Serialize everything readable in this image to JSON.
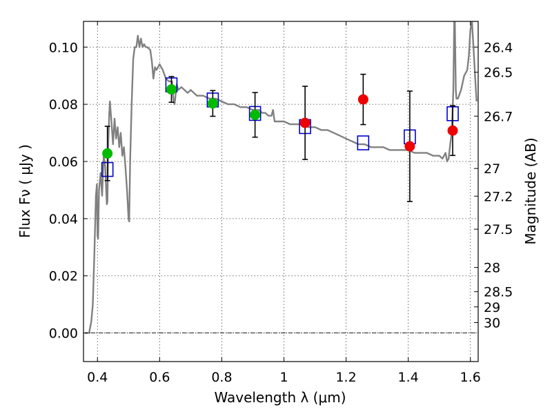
{
  "chart_data": {
    "type": "scatter",
    "title": "",
    "xlabel": "Wavelength  λ (μm)",
    "ylabel": "Flux  Fν  ( μJy )",
    "y2label": "Magnitude (AB)",
    "xlim": [
      0.355,
      1.625
    ],
    "ylim": [
      -0.01,
      0.109
    ],
    "grid": true,
    "x_ticks": [
      0.4,
      0.6,
      0.8,
      1.0,
      1.2,
      1.4,
      1.6
    ],
    "x_tick_labels": [
      "0.4",
      "0.6",
      "0.8",
      "1",
      "1.2",
      "1.4",
      "1.6"
    ],
    "y_ticks": [
      0.0,
      0.02,
      0.04,
      0.06,
      0.08,
      0.1
    ],
    "y_tick_labels": [
      "0.00",
      "0.02",
      "0.04",
      "0.06",
      "0.08",
      "0.10"
    ],
    "mag_ticks": [
      26.4,
      26.5,
      26.7,
      27,
      27.2,
      27.5,
      28,
      28.5,
      29,
      30
    ],
    "mag_tick_labels": [
      "26.4",
      "26.5",
      "26.7",
      "27",
      "27.2",
      "27.5",
      "28",
      "28.5",
      "29",
      "30"
    ],
    "colors": {
      "model": "#808080",
      "optical": "#00bb00",
      "nir": "#ee0000",
      "model_phot": "#0000cc",
      "errorbar": "#000000"
    },
    "series": [
      {
        "style": "line",
        "color": "#808080",
        "points": [
          [
            0.36,
            0.0
          ],
          [
            0.373,
            0.0
          ],
          [
            0.38,
            0.004
          ],
          [
            0.385,
            0.01
          ],
          [
            0.39,
            0.028
          ],
          [
            0.395,
            0.048
          ],
          [
            0.398,
            0.052
          ],
          [
            0.4,
            0.034
          ],
          [
            0.402,
            0.033
          ],
          [
            0.405,
            0.05
          ],
          [
            0.41,
            0.056
          ],
          [
            0.415,
            0.048
          ],
          [
            0.42,
            0.062
          ],
          [
            0.425,
            0.058
          ],
          [
            0.43,
            0.045
          ],
          [
            0.432,
            0.046
          ],
          [
            0.435,
            0.067
          ],
          [
            0.438,
            0.077
          ],
          [
            0.44,
            0.081
          ],
          [
            0.445,
            0.074
          ],
          [
            0.45,
            0.066
          ],
          [
            0.455,
            0.075
          ],
          [
            0.46,
            0.068
          ],
          [
            0.465,
            0.072
          ],
          [
            0.47,
            0.065
          ],
          [
            0.475,
            0.07
          ],
          [
            0.48,
            0.062
          ],
          [
            0.485,
            0.065
          ],
          [
            0.49,
            0.058
          ],
          [
            0.495,
            0.05
          ],
          [
            0.5,
            0.04
          ],
          [
            0.502,
            0.039
          ],
          [
            0.505,
            0.06
          ],
          [
            0.51,
            0.08
          ],
          [
            0.515,
            0.096
          ],
          [
            0.52,
            0.1
          ],
          [
            0.525,
            0.1
          ],
          [
            0.53,
            0.104
          ],
          [
            0.535,
            0.1
          ],
          [
            0.54,
            0.103
          ],
          [
            0.545,
            0.1
          ],
          [
            0.55,
            0.101
          ],
          [
            0.555,
            0.1
          ],
          [
            0.56,
            0.1
          ],
          [
            0.57,
            0.099
          ],
          [
            0.575,
            0.095
          ],
          [
            0.58,
            0.089
          ],
          [
            0.585,
            0.093
          ],
          [
            0.59,
            0.092
          ],
          [
            0.6,
            0.094
          ],
          [
            0.61,
            0.092
          ],
          [
            0.62,
            0.089
          ],
          [
            0.63,
            0.088
          ],
          [
            0.64,
            0.088
          ],
          [
            0.645,
            0.081
          ],
          [
            0.648,
            0.08
          ],
          [
            0.655,
            0.087
          ],
          [
            0.66,
            0.085
          ],
          [
            0.67,
            0.086
          ],
          [
            0.68,
            0.085
          ],
          [
            0.69,
            0.084
          ],
          [
            0.7,
            0.085
          ],
          [
            0.72,
            0.083
          ],
          [
            0.74,
            0.083
          ],
          [
            0.76,
            0.082
          ],
          [
            0.78,
            0.082
          ],
          [
            0.8,
            0.081
          ],
          [
            0.82,
            0.08
          ],
          [
            0.84,
            0.08
          ],
          [
            0.86,
            0.079
          ],
          [
            0.88,
            0.079
          ],
          [
            0.9,
            0.078
          ],
          [
            0.92,
            0.078
          ],
          [
            0.93,
            0.077
          ],
          [
            0.94,
            0.077
          ],
          [
            0.95,
            0.076
          ],
          [
            0.96,
            0.076
          ],
          [
            0.965,
            0.078
          ],
          [
            0.97,
            0.074
          ],
          [
            0.98,
            0.074
          ],
          [
            1.0,
            0.074
          ],
          [
            1.02,
            0.073
          ],
          [
            1.04,
            0.073
          ],
          [
            1.06,
            0.073
          ],
          [
            1.08,
            0.072
          ],
          [
            1.1,
            0.072
          ],
          [
            1.12,
            0.071
          ],
          [
            1.14,
            0.071
          ],
          [
            1.16,
            0.07
          ],
          [
            1.18,
            0.069
          ],
          [
            1.2,
            0.068
          ],
          [
            1.22,
            0.067
          ],
          [
            1.24,
            0.066
          ],
          [
            1.26,
            0.066
          ],
          [
            1.28,
            0.065
          ],
          [
            1.3,
            0.065
          ],
          [
            1.32,
            0.065
          ],
          [
            1.34,
            0.064
          ],
          [
            1.36,
            0.064
          ],
          [
            1.38,
            0.064
          ],
          [
            1.4,
            0.064
          ],
          [
            1.42,
            0.063
          ],
          [
            1.44,
            0.063
          ],
          [
            1.46,
            0.063
          ],
          [
            1.48,
            0.062
          ],
          [
            1.5,
            0.062
          ],
          [
            1.51,
            0.061
          ],
          [
            1.52,
            0.063
          ],
          [
            1.525,
            0.06
          ],
          [
            1.53,
            0.061
          ],
          [
            1.535,
            0.066
          ],
          [
            1.54,
            0.07
          ],
          [
            1.545,
            0.085
          ],
          [
            1.548,
            0.109
          ],
          [
            1.55,
            0.109
          ],
          [
            1.553,
            0.085
          ],
          [
            1.555,
            0.082
          ],
          [
            1.56,
            0.082
          ],
          [
            1.57,
            0.085
          ],
          [
            1.58,
            0.09
          ],
          [
            1.59,
            0.092
          ],
          [
            1.595,
            0.097
          ],
          [
            1.6,
            0.106
          ],
          [
            1.605,
            0.109
          ],
          [
            1.61,
            0.1
          ],
          [
            1.615,
            0.09
          ],
          [
            1.62,
            0.081
          ]
        ]
      },
      {
        "style": "square",
        "color": "#0000cc",
        "points": [
          [
            0.432,
            0.0572
          ],
          [
            0.638,
            0.0868
          ],
          [
            0.771,
            0.0815
          ],
          [
            0.907,
            0.0768
          ],
          [
            1.068,
            0.0722
          ],
          [
            1.255,
            0.0665
          ],
          [
            1.405,
            0.0686
          ],
          [
            1.543,
            0.0767
          ]
        ]
      },
      {
        "style": "circle",
        "color": "#00bb00",
        "points": [
          {
            "x": 0.432,
            "y": 0.0628,
            "err": 0.0095
          },
          {
            "x": 0.638,
            "y": 0.0852,
            "err": 0.0045
          },
          {
            "x": 0.771,
            "y": 0.0803,
            "err": 0.0045
          },
          {
            "x": 0.907,
            "y": 0.0763,
            "err": 0.0078
          }
        ]
      },
      {
        "style": "circle",
        "color": "#ee0000",
        "points": [
          {
            "x": 1.068,
            "y": 0.0735,
            "err": 0.0128
          },
          {
            "x": 1.255,
            "y": 0.0817,
            "err": 0.0088
          },
          {
            "x": 1.405,
            "y": 0.0653,
            "err": 0.0193
          },
          {
            "x": 1.543,
            "y": 0.0708,
            "err": 0.0087
          }
        ]
      }
    ]
  }
}
